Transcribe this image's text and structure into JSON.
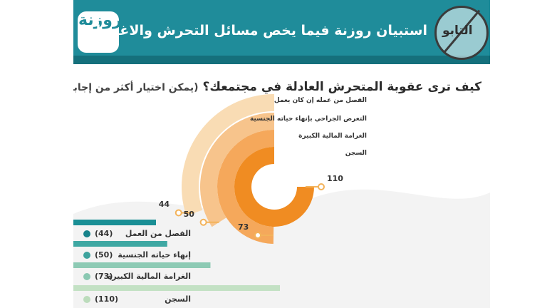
{
  "header": {
    "title": "استبيان روزنة فيما يخص مسائل التحرش والاغتصاب",
    "logo_text": "روزنة",
    "watermark_text": "التابو"
  },
  "question": {
    "main": "كيف ترى عقوبة المتحرش العادلة في مجتمعك؟",
    "note": "(يمكن اختيار أكثر من إجابة)"
  },
  "colors": {
    "header": "#1f8c9a",
    "header_band": "#15707c",
    "arc_shades": [
      "#f9dcb4",
      "#f7c48c",
      "#f5a85b",
      "#f08c22"
    ],
    "bar_shades": [
      "#1a8f95",
      "#3fa8a3",
      "#8dcab4",
      "#c3e1c4"
    ],
    "dot_shades": [
      "#17828a",
      "#3ea39d",
      "#8ac8b2",
      "#bcdcbc"
    ]
  },
  "chart_data": {
    "type": "bar",
    "title": "كيف ترى عقوبة المتحرش العادلة في مجتمعك؟",
    "categories": [
      "الفصل من عمله إن كان يعمل",
      "التعرض الجراحي بإنهاء حياته الجنسية",
      "الغرامة المالية الكبيرة",
      "السجن"
    ],
    "bar_labels": [
      "الفصل من العمل",
      "إنهاء حياته الجنسية",
      "الغرامة المالية الكبيرة",
      "السجن"
    ],
    "values": [
      44,
      50,
      73,
      110
    ],
    "value_labels": [
      "44",
      "50",
      "73",
      "110"
    ],
    "bar_value_labels": [
      "(44)",
      "(50)",
      "(73)",
      "(110)"
    ],
    "max": 110
  }
}
